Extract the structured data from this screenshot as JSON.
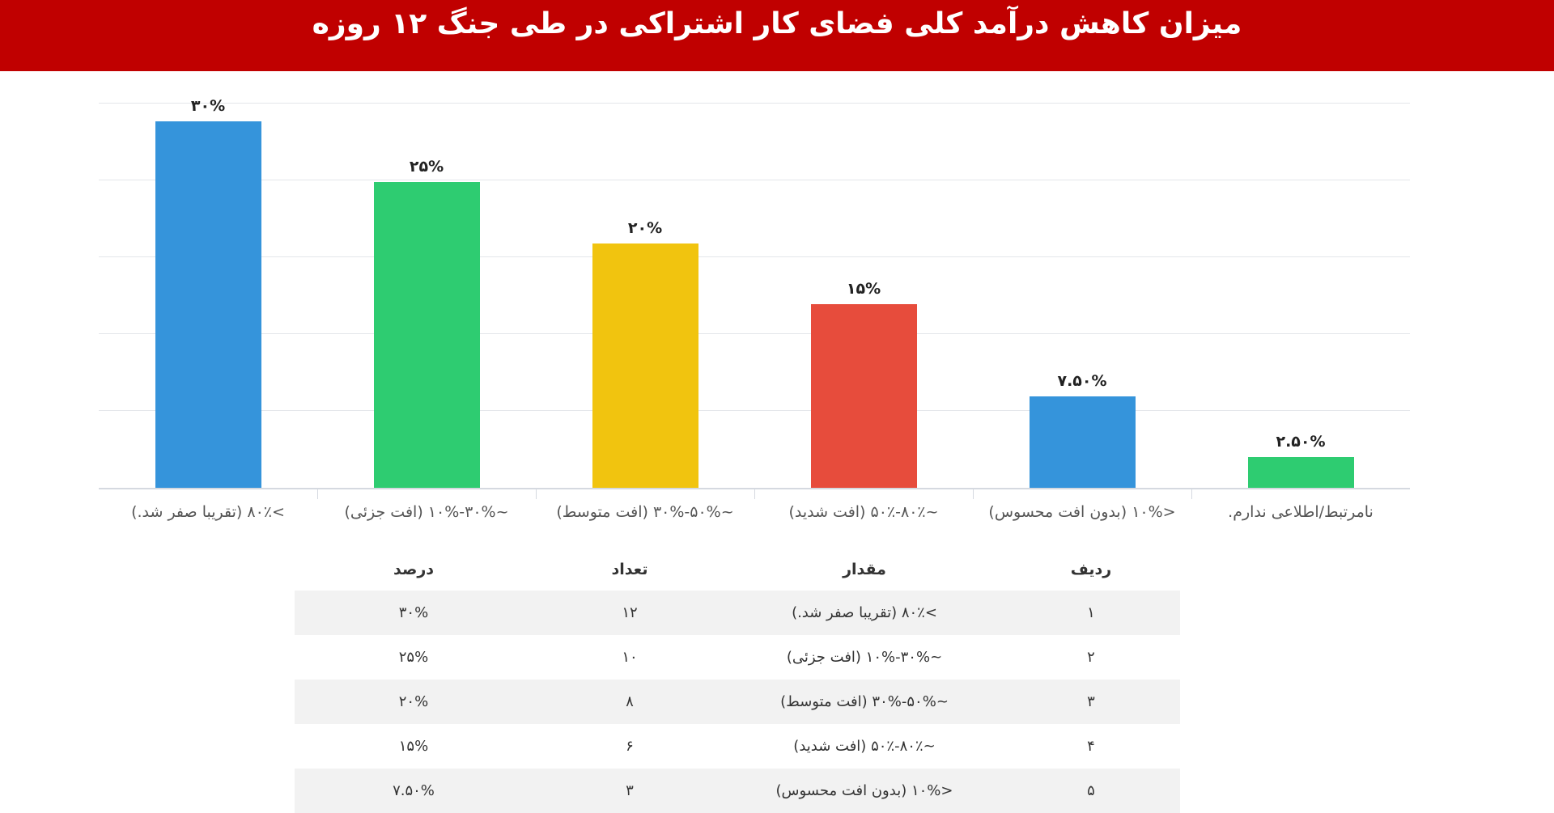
{
  "header": {
    "title": "میزان کاهش درآمد کلی فضای کار اشتراکی در طی جنگ ۱۲ روزه"
  },
  "colors": {
    "header_bg": "#c00000",
    "blue": "#3594db",
    "green": "#2ecc71",
    "yellow": "#f1c40f",
    "red": "#e74c3c"
  },
  "chart_data": {
    "type": "bar",
    "title": "میزان کاهش درآمد کلی فضای کار اشتراکی در طی جنگ ۱۲ روزه",
    "xlabel": "",
    "ylabel": "",
    "categories": [
      ">۸۰٪ (تقریبا صفر شد.)",
      "~۳۰%-۱۰% (افت جزئی)",
      "~۵۰%-۳۰% (افت متوسط)",
      "~۸۰٪-۵۰٪ (افت شدید)",
      "<۱۰% (بدون افت محسوس)",
      "نامرتبط/اطلاعی ندارم."
    ],
    "values": [
      30,
      25,
      20,
      15,
      7.5,
      2.5
    ],
    "value_labels": [
      "۳۰%",
      "۲۵%",
      "۲۰%",
      "۱۵%",
      "۷.۵۰%",
      "۲.۵۰%"
    ],
    "bar_colors": [
      "#3594db",
      "#2ecc71",
      "#f1c40f",
      "#e74c3c",
      "#3594db",
      "#2ecc71"
    ],
    "ylim": [
      0,
      31.5
    ],
    "grid": true,
    "legend": "none"
  },
  "table": {
    "headers": {
      "index": "ردیف",
      "value": "مقدار",
      "count": "تعداد",
      "percent": "درصد"
    },
    "rows": [
      {
        "index": "۱",
        "value": ">۸۰٪ (تقریبا صفر شد.)",
        "count": "۱۲",
        "percent": "۳۰%"
      },
      {
        "index": "۲",
        "value": "~۳۰%-۱۰% (افت جزئی)",
        "count": "۱۰",
        "percent": "۲۵%"
      },
      {
        "index": "۳",
        "value": "~۵۰%-۳۰% (افت متوسط)",
        "count": "۸",
        "percent": "۲۰%"
      },
      {
        "index": "۴",
        "value": "~۸۰٪-۵۰٪ (افت شدید)",
        "count": "۶",
        "percent": "۱۵%"
      },
      {
        "index": "۵",
        "value": "<۱۰% (بدون افت محسوس)",
        "count": "۳",
        "percent": "۷.۵۰%"
      }
    ]
  }
}
